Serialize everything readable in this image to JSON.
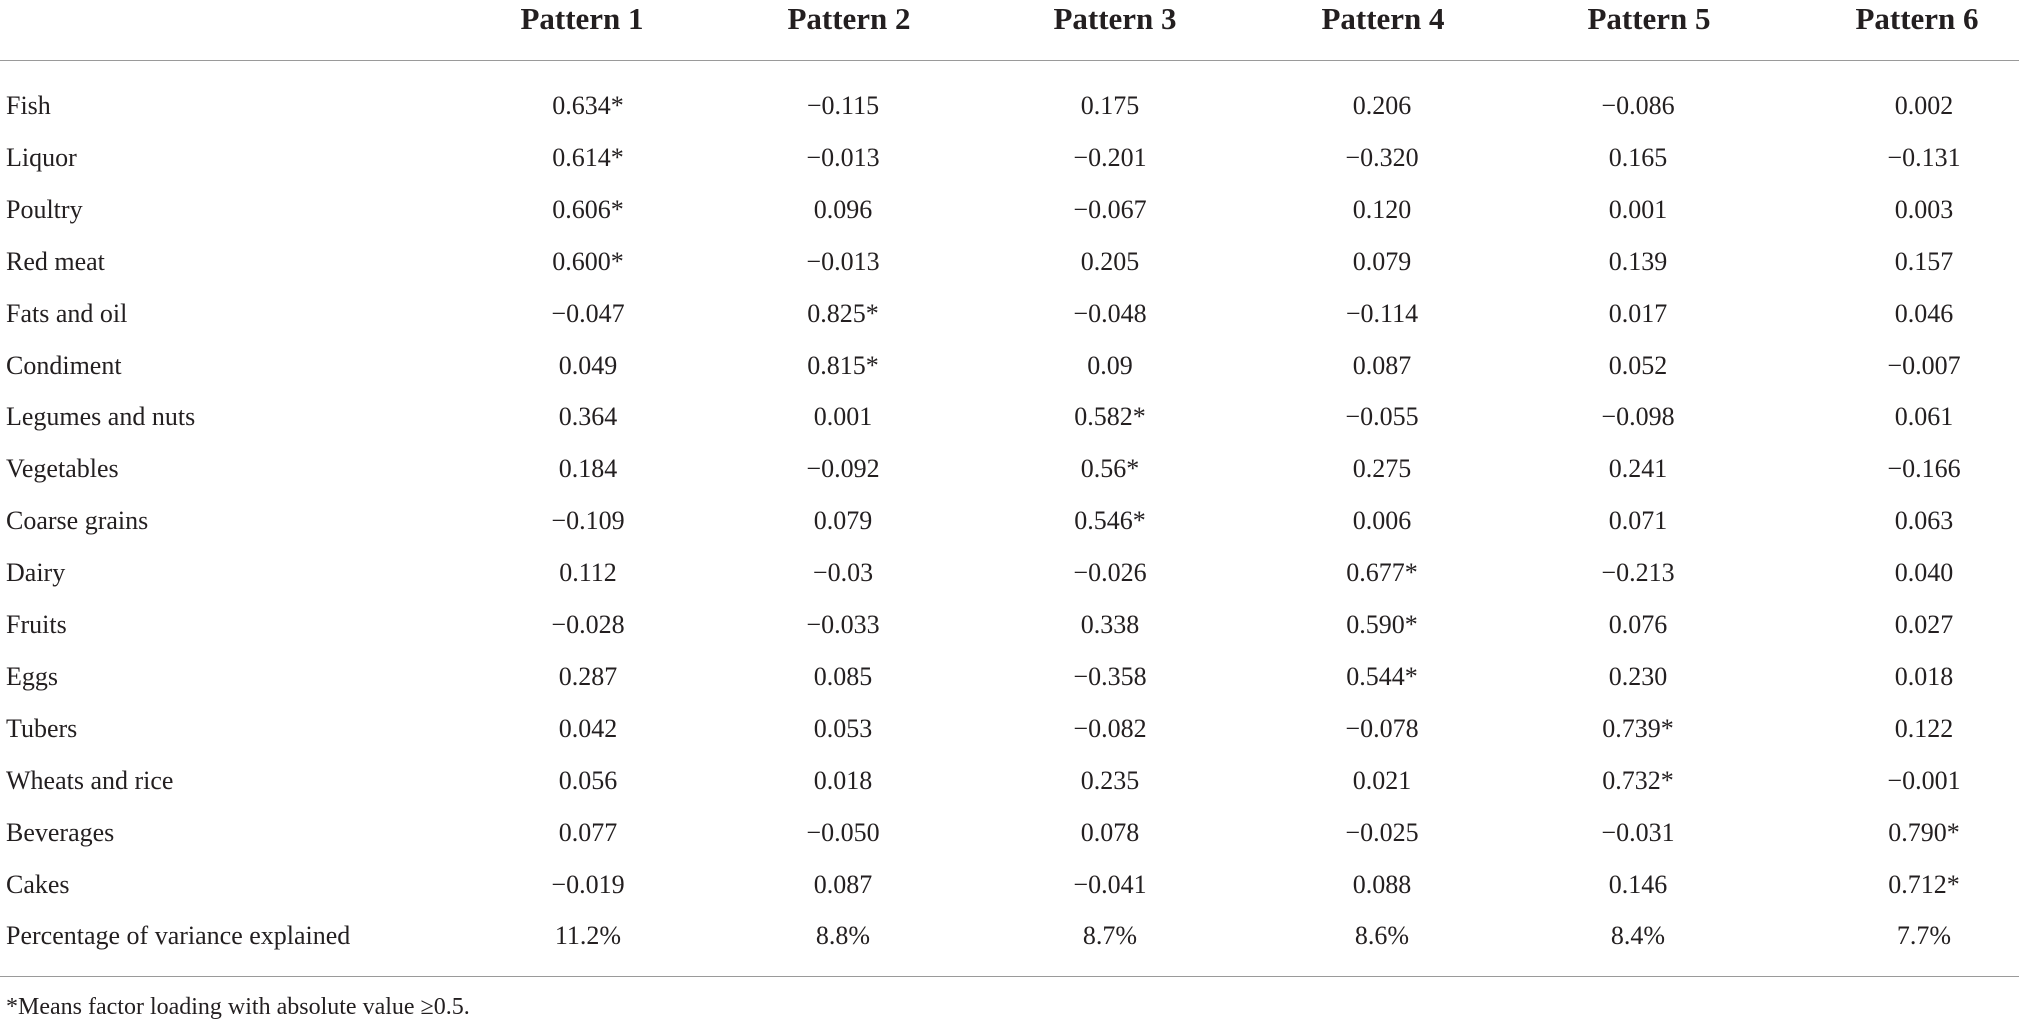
{
  "table": {
    "header": [
      "Pattern 1",
      "Pattern 2",
      "Pattern 3",
      "Pattern 4",
      "Pattern 5",
      "Pattern 6"
    ],
    "rows": [
      [
        "Fish",
        "0.634*",
        "−0.115",
        "0.175",
        "0.206",
        "−0.086",
        "0.002"
      ],
      [
        "Liquor",
        "0.614*",
        "−0.013",
        "−0.201",
        "−0.320",
        "0.165",
        "−0.131"
      ],
      [
        "Poultry",
        "0.606*",
        "0.096",
        "−0.067",
        "0.120",
        "0.001",
        "0.003"
      ],
      [
        "Red meat",
        "0.600*",
        "−0.013",
        "0.205",
        "0.079",
        "0.139",
        "0.157"
      ],
      [
        "Fats and oil",
        "−0.047",
        "0.825*",
        "−0.048",
        "−0.114",
        "0.017",
        "0.046"
      ],
      [
        "Condiment",
        "0.049",
        "0.815*",
        "0.09",
        "0.087",
        "0.052",
        "−0.007"
      ],
      [
        "Legumes and nuts",
        "0.364",
        "0.001",
        "0.582*",
        "−0.055",
        "−0.098",
        "0.061"
      ],
      [
        "Vegetables",
        "0.184",
        "−0.092",
        "0.56*",
        "0.275",
        "0.241",
        "−0.166"
      ],
      [
        "Coarse grains",
        "−0.109",
        "0.079",
        "0.546*",
        "0.006",
        "0.071",
        "0.063"
      ],
      [
        "Dairy",
        "0.112",
        "−0.03",
        "−0.026",
        "0.677*",
        "−0.213",
        "0.040"
      ],
      [
        "Fruits",
        "−0.028",
        "−0.033",
        "0.338",
        "0.590*",
        "0.076",
        "0.027"
      ],
      [
        "Eggs",
        "0.287",
        "0.085",
        "−0.358",
        "0.544*",
        "0.230",
        "0.018"
      ],
      [
        "Tubers",
        "0.042",
        "0.053",
        "−0.082",
        "−0.078",
        "0.739*",
        "0.122"
      ],
      [
        "Wheats and rice",
        "0.056",
        "0.018",
        "0.235",
        "0.021",
        "0.732*",
        "−0.001"
      ],
      [
        "Beverages",
        "0.077",
        "−0.050",
        "0.078",
        "−0.025",
        "−0.031",
        "0.790*"
      ],
      [
        "Cakes",
        "−0.019",
        "0.087",
        "−0.041",
        "0.088",
        "0.146",
        "0.712*"
      ],
      [
        "Percentage of variance explained",
        "11.2%",
        "8.8%",
        "8.7%",
        "8.6%",
        "8.4%",
        "7.7%"
      ]
    ],
    "footnote": "*Means factor loading with absolute value ≥0.5."
  }
}
